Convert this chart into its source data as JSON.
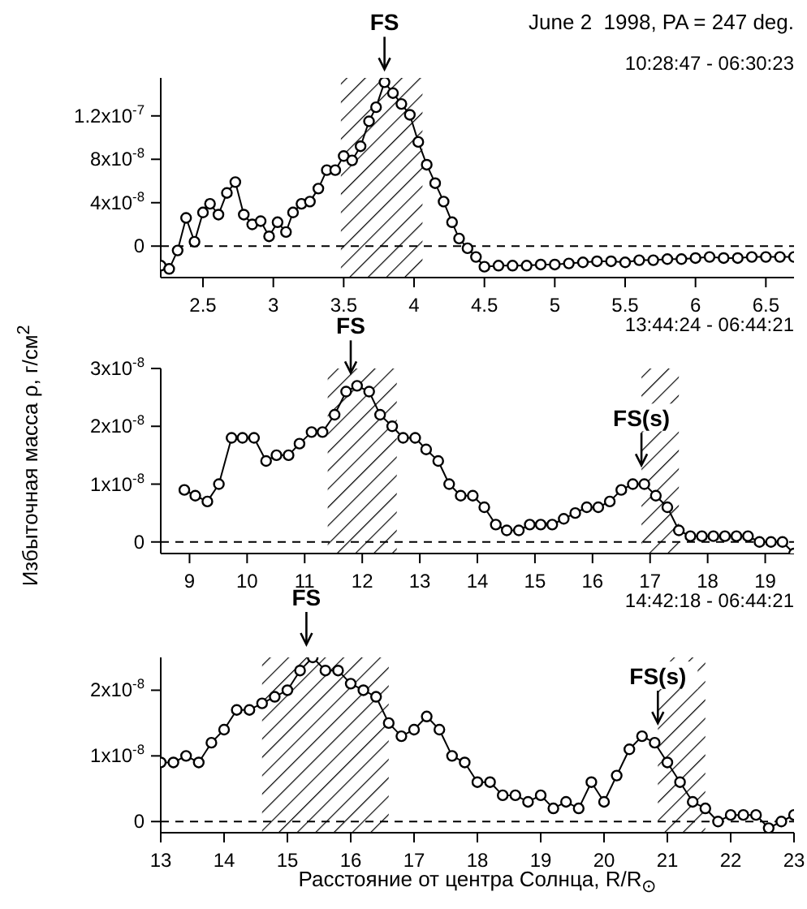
{
  "chart_data": [
    {
      "type": "line",
      "title": "June 2  1998, PA = 247 deg.",
      "annotations": [
        {
          "text": "FS",
          "x": 3.79,
          "y": 1.51e-07
        },
        "10:28:47 - 06:30:23"
      ],
      "x": [
        2.2,
        2.26,
        2.32,
        2.38,
        2.44,
        2.5,
        2.55,
        2.61,
        2.67,
        2.73,
        2.79,
        2.85,
        2.91,
        2.97,
        3.03,
        3.09,
        3.14,
        3.2,
        3.26,
        3.32,
        3.38,
        3.44,
        3.5,
        3.56,
        3.62,
        3.68,
        3.73,
        3.79,
        3.85,
        3.91,
        3.97,
        4.03,
        4.09,
        4.15,
        4.21,
        4.27,
        4.32,
        4.38,
        4.44,
        4.5,
        4.6,
        4.7,
        4.8,
        4.9,
        5.0,
        5.1,
        5.2,
        5.3,
        5.4,
        5.5,
        5.6,
        5.7,
        5.8,
        5.9,
        6.0,
        6.1,
        6.2,
        6.3,
        6.4,
        6.5,
        6.6,
        6.7
      ],
      "series": [
        {
          "color": "#000000",
          "values": [
            -1.8e-08,
            -2.1e-08,
            -4e-09,
            2.6e-08,
            4e-09,
            3.1e-08,
            3.9e-08,
            2.9e-08,
            4.9e-08,
            5.9e-08,
            2.9e-08,
            2e-08,
            2.3e-08,
            9e-09,
            2.2e-08,
            1.3e-08,
            3.1e-08,
            3.9e-08,
            4.1e-08,
            5.3e-08,
            7e-08,
            7e-08,
            8.3e-08,
            7.9e-08,
            9.2e-08,
            1.15e-07,
            1.28e-07,
            1.51e-07,
            1.41e-07,
            1.31e-07,
            1.21e-07,
            9.6e-08,
            7.5e-08,
            5.8e-08,
            4.1e-08,
            2.2e-08,
            7e-09,
            -2e-09,
            -1e-08,
            -1.9e-08,
            -1.8e-08,
            -1.8e-08,
            -1.8e-08,
            -1.7e-08,
            -1.7e-08,
            -1.6e-08,
            -1.5e-08,
            -1.4e-08,
            -1.4e-08,
            -1.5e-08,
            -1.3e-08,
            -1.3e-08,
            -1.2e-08,
            -1.2e-08,
            -1.1e-08,
            -1e-08,
            -1.1e-08,
            -1.1e-08,
            -1e-08,
            -1e-08,
            -1e-08,
            -1e-08
          ]
        }
      ],
      "xlim": [
        2.2,
        6.7
      ],
      "xticks": [
        2.5,
        3,
        3.5,
        4,
        4.5,
        5,
        5.5,
        6,
        6.5
      ],
      "ylim": [
        -2.9e-08,
        1.55e-07
      ],
      "yticks": [
        {
          "value": 0,
          "label": "0"
        },
        {
          "value": 4e-08,
          "label": "4x10$^{-8}$"
        },
        {
          "value": 8e-08,
          "label": "8x10$^{-8}$"
        },
        {
          "value": 1.2e-07,
          "label": "1.2x10$^{-7}$"
        }
      ],
      "ref_lines": [
        {
          "axis": "y",
          "value": 0,
          "color": "#000000",
          "line_style": "dashed"
        }
      ],
      "bands": [
        {
          "axis": "x",
          "from": 3.48,
          "to": 4.06
        }
      ],
      "marker": "circle",
      "line_style": "solid",
      "grid": false
    },
    {
      "type": "line",
      "ylabel": "Избыточная масса ρ, г/см$^{2}$",
      "annotations": [
        {
          "text": "FS",
          "x": 11.8,
          "y": 2.7e-08
        },
        {
          "text": "FS(s)",
          "x": 16.85,
          "y": 1.1e-08
        },
        "13:44:24 - 06:44:21"
      ],
      "x": [
        8.91,
        9.1,
        9.31,
        9.51,
        9.73,
        9.92,
        10.12,
        10.33,
        10.51,
        10.72,
        10.91,
        11.12,
        11.31,
        11.52,
        11.72,
        11.91,
        12.12,
        12.31,
        12.52,
        12.71,
        12.92,
        13.11,
        13.32,
        13.51,
        13.71,
        13.92,
        14.12,
        14.32,
        14.51,
        14.72,
        14.91,
        15.1,
        15.3,
        15.5,
        15.7,
        15.9,
        16.1,
        16.3,
        16.5,
        16.7,
        16.9,
        17.1,
        17.3,
        17.5,
        17.7,
        17.9,
        18.1,
        18.3,
        18.5,
        18.7,
        18.9,
        19.1,
        19.3,
        19.5
      ],
      "series": [
        {
          "color": "#000000",
          "values": [
            9e-09,
            8e-09,
            7e-09,
            1e-08,
            1.8e-08,
            1.8e-08,
            1.8e-08,
            1.4e-08,
            1.5e-08,
            1.5e-08,
            1.7e-08,
            1.9e-08,
            1.9e-08,
            2.2e-08,
            2.6e-08,
            2.7e-08,
            2.6e-08,
            2.2e-08,
            2e-08,
            1.8e-08,
            1.8e-08,
            1.6e-08,
            1.4e-08,
            1e-08,
            8e-09,
            8e-09,
            6e-09,
            3e-09,
            2e-09,
            2e-09,
            3e-09,
            3e-09,
            3e-09,
            4e-09,
            5e-09,
            6e-09,
            6e-09,
            7e-09,
            9e-09,
            1e-08,
            1e-08,
            8e-09,
            6e-09,
            2e-09,
            1e-09,
            1e-09,
            1e-09,
            1e-09,
            1e-09,
            1e-09,
            0,
            0,
            0,
            -2e-09
          ]
        }
      ],
      "xlim": [
        8.5,
        19.5
      ],
      "xticks": [
        9,
        10,
        11,
        12,
        13,
        14,
        15,
        16,
        17,
        18,
        19
      ],
      "ylim": [
        -2e-09,
        3e-08
      ],
      "yticks": [
        {
          "value": 0,
          "label": "0"
        },
        {
          "value": 1e-08,
          "label": "1x10$^{-8}$"
        },
        {
          "value": 2e-08,
          "label": "2x10$^{-8}$"
        },
        {
          "value": 3e-08,
          "label": "3x10$^{-8}$"
        }
      ],
      "ref_lines": [
        {
          "axis": "y",
          "value": 0,
          "color": "#000000",
          "line_style": "dashed"
        }
      ],
      "bands": [
        {
          "axis": "x",
          "from": 11.4,
          "to": 12.6
        },
        {
          "axis": "x",
          "from": 16.85,
          "to": 17.5
        }
      ],
      "marker": "circle",
      "line_style": "solid",
      "grid": false
    },
    {
      "type": "line",
      "xlabel": "Расстояние от центра Солнца, R/R$_{⊙}$",
      "annotations": [
        {
          "text": "FS",
          "x": 15.3,
          "y": 2.5e-08
        },
        {
          "text": "FS(s)",
          "x": 20.85,
          "y": 1.3e-08
        },
        "14:42:18 - 06:44:21"
      ],
      "x": [
        13.0,
        13.2,
        13.4,
        13.6,
        13.8,
        14.0,
        14.2,
        14.4,
        14.6,
        14.8,
        15.0,
        15.2,
        15.4,
        15.6,
        15.8,
        16.0,
        16.2,
        16.4,
        16.6,
        16.8,
        17.0,
        17.2,
        17.4,
        17.6,
        17.8,
        18.0,
        18.2,
        18.4,
        18.6,
        18.8,
        19.0,
        19.2,
        19.4,
        19.6,
        19.8,
        20.0,
        20.2,
        20.4,
        20.6,
        20.8,
        21.0,
        21.2,
        21.4,
        21.6,
        21.8,
        22.0,
        22.2,
        22.4,
        22.6,
        22.8,
        23.0
      ],
      "series": [
        {
          "color": "#000000",
          "values": [
            9e-09,
            9e-09,
            1e-08,
            9e-09,
            1.2e-08,
            1.4e-08,
            1.7e-08,
            1.7e-08,
            1.8e-08,
            1.9e-08,
            2e-08,
            2.3e-08,
            2.5e-08,
            2.3e-08,
            2.3e-08,
            2.1e-08,
            2e-08,
            1.9e-08,
            1.5e-08,
            1.3e-08,
            1.4e-08,
            1.6e-08,
            1.4e-08,
            1e-08,
            9e-09,
            6e-09,
            6e-09,
            4e-09,
            4e-09,
            3e-09,
            4e-09,
            2e-09,
            3e-09,
            2e-09,
            6e-09,
            3e-09,
            7e-09,
            1.1e-08,
            1.3e-08,
            1.2e-08,
            9e-09,
            6e-09,
            3e-09,
            2e-09,
            0,
            1e-09,
            1e-09,
            1e-09,
            -1e-09,
            0,
            1e-09
          ]
        }
      ],
      "xlim": [
        13,
        23
      ],
      "xticks": [
        13,
        14,
        15,
        16,
        17,
        18,
        19,
        20,
        21,
        22,
        23
      ],
      "ylim": [
        -1.7e-09,
        2.5e-08
      ],
      "yticks": [
        {
          "value": 0,
          "label": "0"
        },
        {
          "value": 1e-08,
          "label": "1x10$^{-8}$"
        },
        {
          "value": 2e-08,
          "label": "2x10$^{-8}$"
        }
      ],
      "ref_lines": [
        {
          "axis": "y",
          "value": 0,
          "color": "#000000",
          "line_style": "dashed"
        }
      ],
      "bands": [
        {
          "axis": "x",
          "from": 14.6,
          "to": 16.6
        },
        {
          "axis": "x",
          "from": 20.85,
          "to": 21.6
        }
      ],
      "marker": "circle",
      "line_style": "solid",
      "grid": false
    }
  ]
}
